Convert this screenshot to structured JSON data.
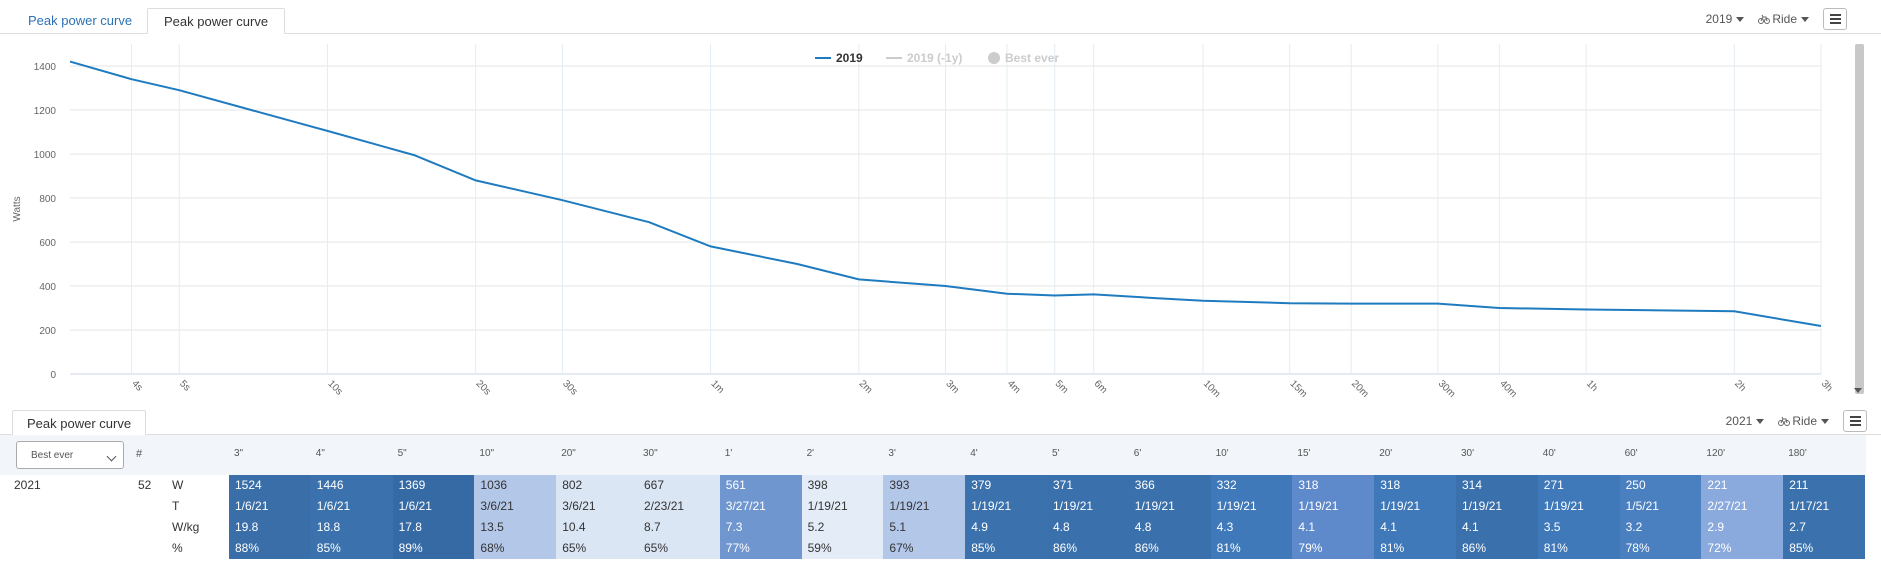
{
  "tabs": {
    "tab1": "Peak power curve",
    "tab2": "Peak power curve"
  },
  "top_controls": {
    "year": "2019",
    "sport": "Ride",
    "bike_icon": "bike-icon",
    "menu_icon": "hamburger-menu-icon"
  },
  "chart_data": {
    "type": "line",
    "ylabel": "Watts",
    "ylim": [
      0,
      1500
    ],
    "yticks": [
      0,
      200,
      400,
      600,
      800,
      1000,
      1200,
      1400
    ],
    "x_scale": "log",
    "xtick_labels": [
      "4s",
      "5s",
      "10s",
      "20s",
      "30s",
      "1m",
      "2m",
      "3m",
      "4m",
      "5m",
      "6m",
      "10m",
      "15m",
      "20m",
      "30m",
      "40m",
      "1h",
      "2h",
      "3h"
    ],
    "xtick_seconds": [
      4,
      5,
      10,
      20,
      30,
      60,
      120,
      180,
      240,
      300,
      360,
      600,
      900,
      1200,
      1800,
      2400,
      3600,
      7200,
      10800
    ],
    "legend": [
      {
        "name": "2019",
        "color": "#1f7bbf",
        "active": true
      },
      {
        "name": "2019 (-1y)",
        "color": "#cccccc",
        "active": false
      },
      {
        "name": "Best ever",
        "color": "#cccccc",
        "active": false
      }
    ],
    "legend_position": "top-center",
    "grid": true,
    "series": [
      {
        "name": "2019",
        "color": "#1f7bbf",
        "x": [
          3,
          4,
          5,
          7,
          10,
          15,
          20,
          30,
          45,
          60,
          90,
          120,
          180,
          240,
          300,
          360,
          480,
          600,
          900,
          1200,
          1800,
          2400,
          3600,
          7200,
          10800
        ],
        "values": [
          1420,
          1340,
          1290,
          1200,
          1105,
          995,
          880,
          790,
          690,
          580,
          500,
          430,
          400,
          365,
          357,
          362,
          345,
          333,
          322,
          320,
          320,
          300,
          293,
          285,
          218
        ]
      }
    ]
  },
  "bottom": {
    "tab": "Peak power curve",
    "year": "2021",
    "sport": "Ride",
    "select_value": "Best ever",
    "hash": "#",
    "row_year": "2021",
    "row_count": "52",
    "row_labels": [
      "W",
      "T",
      "W/kg",
      "%"
    ],
    "durations": [
      "3\"",
      "4\"",
      "5\"",
      "10\"",
      "20\"",
      "30\"",
      "1'",
      "2'",
      "3'",
      "4'",
      "5'",
      "6'",
      "10'",
      "15'",
      "20'",
      "30'",
      "40'",
      "60'",
      "120'",
      "180'"
    ],
    "cells": [
      {
        "w": "1524",
        "t": "1/6/21",
        "wkg": "19.8",
        "pct": "88%",
        "bg": "#3a6ea8",
        "fg": "#ffffff"
      },
      {
        "w": "1446",
        "t": "1/6/21",
        "wkg": "18.8",
        "pct": "85%",
        "bg": "#3b72ad",
        "fg": "#ffffff"
      },
      {
        "w": "1369",
        "t": "1/6/21",
        "wkg": "17.8",
        "pct": "89%",
        "bg": "#366aa5",
        "fg": "#ffffff"
      },
      {
        "w": "1036",
        "t": "3/6/21",
        "wkg": "13.5",
        "pct": "68%",
        "bg": "#b3c7e8",
        "fg": "#333333"
      },
      {
        "w": "802",
        "t": "3/6/21",
        "wkg": "10.4",
        "pct": "65%",
        "bg": "#dbe6f5",
        "fg": "#333333"
      },
      {
        "w": "667",
        "t": "2/23/21",
        "wkg": "8.7",
        "pct": "65%",
        "bg": "#dbe6f5",
        "fg": "#333333"
      },
      {
        "w": "561",
        "t": "3/27/21",
        "wkg": "7.3",
        "pct": "77%",
        "bg": "#6f96cf",
        "fg": "#ffffff"
      },
      {
        "w": "398",
        "t": "1/19/21",
        "wkg": "5.2",
        "pct": "59%",
        "bg": "#e4ecf8",
        "fg": "#333333"
      },
      {
        "w": "393",
        "t": "1/19/21",
        "wkg": "5.1",
        "pct": "67%",
        "bg": "#b3c7e8",
        "fg": "#333333"
      },
      {
        "w": "379",
        "t": "1/19/21",
        "wkg": "4.9",
        "pct": "85%",
        "bg": "#3b72ad",
        "fg": "#ffffff"
      },
      {
        "w": "371",
        "t": "1/19/21",
        "wkg": "4.8",
        "pct": "86%",
        "bg": "#3a70ab",
        "fg": "#ffffff"
      },
      {
        "w": "366",
        "t": "1/19/21",
        "wkg": "4.8",
        "pct": "86%",
        "bg": "#3a70ab",
        "fg": "#ffffff"
      },
      {
        "w": "332",
        "t": "1/19/21",
        "wkg": "4.3",
        "pct": "81%",
        "bg": "#4079b9",
        "fg": "#ffffff"
      },
      {
        "w": "318",
        "t": "1/19/21",
        "wkg": "4.1",
        "pct": "79%",
        "bg": "#5e8acc",
        "fg": "#ffffff"
      },
      {
        "w": "318",
        "t": "1/19/21",
        "wkg": "4.1",
        "pct": "81%",
        "bg": "#4079b9",
        "fg": "#ffffff"
      },
      {
        "w": "314",
        "t": "1/19/21",
        "wkg": "4.1",
        "pct": "86%",
        "bg": "#3a70ab",
        "fg": "#ffffff"
      },
      {
        "w": "271",
        "t": "1/19/21",
        "wkg": "3.5",
        "pct": "81%",
        "bg": "#4079b9",
        "fg": "#ffffff"
      },
      {
        "w": "250",
        "t": "1/5/21",
        "wkg": "3.2",
        "pct": "78%",
        "bg": "#4a7fc0",
        "fg": "#ffffff"
      },
      {
        "w": "221",
        "t": "2/27/21",
        "wkg": "2.9",
        "pct": "72%",
        "bg": "#8aa9dc",
        "fg": "#ffffff"
      },
      {
        "w": "211",
        "t": "1/17/21",
        "wkg": "2.7",
        "pct": "85%",
        "bg": "#3b72ad",
        "fg": "#ffffff"
      }
    ]
  }
}
